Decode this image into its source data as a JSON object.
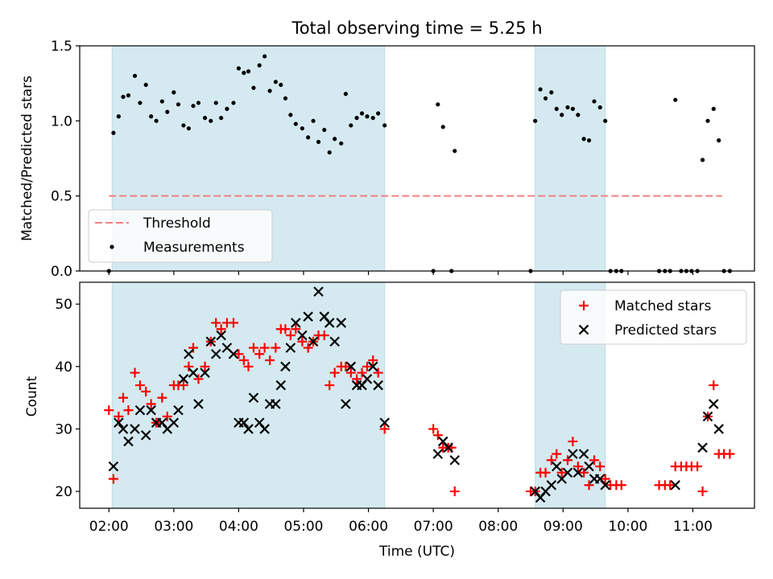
{
  "chart_data": [
    {
      "type": "scatter",
      "title": "Total observing time = 5.25 h",
      "ylabel": "Matched/Predicted stars",
      "xlabel": "",
      "xlim": [
        1.55,
        11.95
      ],
      "ylim": [
        0.0,
        1.5
      ],
      "yticks": [
        0.0,
        0.5,
        1.0,
        1.5
      ],
      "ytick_labels": [
        "0.0",
        "0.5",
        "1.0",
        "1.5"
      ],
      "grid": false,
      "legend": {
        "placement": "lower-left",
        "entries": [
          "Threshold",
          "Measurements"
        ]
      },
      "shaded_intervals": [
        [
          2.05,
          6.25
        ],
        [
          8.57,
          9.65
        ]
      ],
      "threshold": {
        "name": "Threshold",
        "y": 0.5,
        "x": [
          2.0,
          11.45
        ],
        "color": "#f08080"
      },
      "series": [
        {
          "name": "Measurements",
          "color": "#000000",
          "x": [
            2.0,
            2.07,
            2.15,
            2.22,
            2.3,
            2.4,
            2.48,
            2.57,
            2.65,
            2.73,
            2.82,
            2.9,
            3.0,
            3.07,
            3.15,
            3.23,
            3.3,
            3.38,
            3.48,
            3.57,
            3.65,
            3.73,
            3.82,
            3.92,
            4.0,
            4.08,
            4.15,
            4.23,
            4.32,
            4.4,
            4.48,
            4.57,
            4.65,
            4.72,
            4.8,
            4.88,
            4.98,
            5.07,
            5.15,
            5.23,
            5.32,
            5.4,
            5.48,
            5.58,
            5.65,
            5.73,
            5.82,
            5.9,
            5.98,
            6.07,
            6.15,
            6.25,
            7.0,
            7.07,
            7.15,
            7.28,
            7.33,
            8.5,
            8.57,
            8.65,
            8.73,
            8.82,
            8.9,
            8.98,
            9.07,
            9.15,
            9.23,
            9.32,
            9.4,
            9.48,
            9.57,
            9.65,
            9.73,
            9.82,
            9.9,
            10.48,
            10.57,
            10.65,
            10.73,
            10.82,
            10.9,
            10.98,
            11.07,
            11.15,
            11.23,
            11.32,
            11.4,
            11.48,
            11.57
          ],
          "y": [
            0.0,
            0.92,
            1.03,
            1.16,
            1.17,
            1.3,
            1.12,
            1.24,
            1.03,
            1.0,
            1.13,
            1.06,
            1.19,
            1.11,
            0.97,
            0.95,
            1.1,
            1.12,
            1.02,
            1.0,
            1.12,
            1.02,
            1.08,
            1.12,
            1.35,
            1.32,
            1.33,
            1.22,
            1.37,
            1.43,
            1.2,
            1.26,
            1.24,
            1.15,
            1.04,
            0.98,
            0.95,
            0.89,
            1.0,
            0.86,
            0.94,
            0.79,
            0.88,
            0.85,
            1.18,
            0.97,
            1.02,
            1.05,
            1.03,
            1.02,
            1.05,
            0.97,
            0.0,
            1.11,
            0.96,
            0.0,
            0.8,
            0.0,
            1.0,
            1.21,
            1.15,
            1.19,
            1.08,
            1.04,
            1.09,
            1.08,
            1.04,
            0.88,
            0.87,
            1.13,
            1.09,
            1.0,
            0.0,
            0.0,
            0.0,
            0.0,
            0.0,
            0.0,
            1.14,
            0.0,
            0.0,
            0.0,
            0.0,
            0.74,
            1.0,
            1.08,
            0.87,
            0.0,
            0.0
          ]
        }
      ]
    },
    {
      "type": "scatter",
      "title": "",
      "ylabel": "Count",
      "xlabel": "Time (UTC)",
      "xlim": [
        1.55,
        11.95
      ],
      "ylim": [
        17.3,
        53.5
      ],
      "yticks": [
        20,
        30,
        40,
        50
      ],
      "ytick_labels": [
        "20",
        "30",
        "40",
        "50"
      ],
      "xticks": [
        2,
        3,
        4,
        5,
        6,
        7,
        8,
        9,
        10,
        11
      ],
      "xtick_labels": [
        "02:00",
        "03:00",
        "04:00",
        "05:00",
        "06:00",
        "07:00",
        "08:00",
        "09:00",
        "10:00",
        "11:00"
      ],
      "grid": false,
      "legend": {
        "placement": "top-right",
        "entries": [
          "Matched stars",
          "Predicted stars"
        ]
      },
      "shaded_intervals": [
        [
          2.05,
          6.25
        ],
        [
          8.57,
          9.65
        ]
      ],
      "series": [
        {
          "name": "Matched stars",
          "color": "#ff0000",
          "x": [
            2.0,
            2.07,
            2.15,
            2.22,
            2.3,
            2.4,
            2.48,
            2.57,
            2.65,
            2.73,
            2.82,
            2.9,
            3.0,
            3.07,
            3.15,
            3.23,
            3.3,
            3.38,
            3.48,
            3.57,
            3.65,
            3.73,
            3.82,
            3.92,
            4.0,
            4.08,
            4.15,
            4.23,
            4.32,
            4.4,
            4.48,
            4.57,
            4.65,
            4.72,
            4.8,
            4.88,
            4.98,
            5.07,
            5.15,
            5.23,
            5.32,
            5.4,
            5.48,
            5.58,
            5.65,
            5.73,
            5.82,
            5.9,
            5.98,
            6.07,
            6.15,
            6.25,
            7.0,
            7.07,
            7.15,
            7.23,
            7.28,
            7.33,
            8.5,
            8.57,
            8.65,
            8.73,
            8.82,
            8.9,
            8.98,
            9.07,
            9.15,
            9.23,
            9.32,
            9.4,
            9.48,
            9.57,
            9.65,
            9.73,
            9.82,
            9.9,
            10.48,
            10.57,
            10.65,
            10.73,
            10.82,
            10.9,
            10.98,
            11.07,
            11.15,
            11.23,
            11.32,
            11.4,
            11.48,
            11.57
          ],
          "y": [
            33,
            22,
            32,
            35,
            33,
            39,
            37,
            36,
            34,
            31,
            35,
            32,
            37,
            37,
            37,
            40,
            43,
            38,
            40,
            44,
            47,
            46,
            47,
            47,
            42,
            41,
            40,
            43,
            42,
            43,
            41,
            43,
            46,
            46,
            45,
            46,
            44,
            43,
            44,
            45,
            45,
            37,
            39,
            40,
            40,
            39,
            38,
            39,
            40,
            41,
            39,
            30,
            30,
            29,
            27,
            27,
            27,
            20,
            20,
            20,
            23,
            23,
            25,
            26,
            23,
            25,
            28,
            24,
            23,
            21,
            25,
            24,
            22,
            21,
            21,
            21,
            21,
            21,
            21,
            24,
            24,
            24,
            24,
            24,
            20,
            32,
            37,
            26,
            26,
            26
          ]
        },
        {
          "name": "Predicted stars",
          "color": "#000000",
          "x": [
            2.07,
            2.15,
            2.22,
            2.3,
            2.4,
            2.48,
            2.57,
            2.65,
            2.73,
            2.82,
            2.9,
            3.0,
            3.07,
            3.15,
            3.23,
            3.3,
            3.38,
            3.48,
            3.57,
            3.65,
            3.73,
            3.82,
            3.92,
            4.0,
            4.08,
            4.15,
            4.23,
            4.32,
            4.4,
            4.48,
            4.57,
            4.65,
            4.72,
            4.8,
            4.88,
            4.98,
            5.07,
            5.15,
            5.23,
            5.32,
            5.4,
            5.48,
            5.58,
            5.65,
            5.73,
            5.82,
            5.9,
            5.98,
            6.07,
            6.15,
            6.25,
            7.07,
            7.15,
            7.23,
            7.33,
            8.57,
            8.65,
            8.73,
            8.82,
            8.9,
            8.98,
            9.07,
            9.15,
            9.23,
            9.32,
            9.4,
            9.48,
            9.57,
            9.65,
            10.73,
            11.15,
            11.23,
            11.32,
            11.4
          ],
          "y": [
            24,
            31,
            30,
            28,
            30,
            33,
            29,
            33,
            31,
            31,
            30,
            31,
            33,
            38,
            42,
            39,
            34,
            39,
            44,
            42,
            45,
            43,
            42,
            31,
            31,
            30,
            35,
            31,
            30,
            34,
            34,
            37,
            40,
            43,
            47,
            45,
            48,
            44,
            52,
            48,
            47,
            44,
            47,
            34,
            40,
            37,
            37,
            38,
            40,
            37,
            31,
            26,
            28,
            27,
            25,
            20,
            19,
            20,
            21,
            24,
            22,
            23,
            26,
            23,
            26,
            24,
            22,
            22,
            21,
            21,
            27,
            32,
            34,
            30
          ]
        }
      ]
    }
  ]
}
